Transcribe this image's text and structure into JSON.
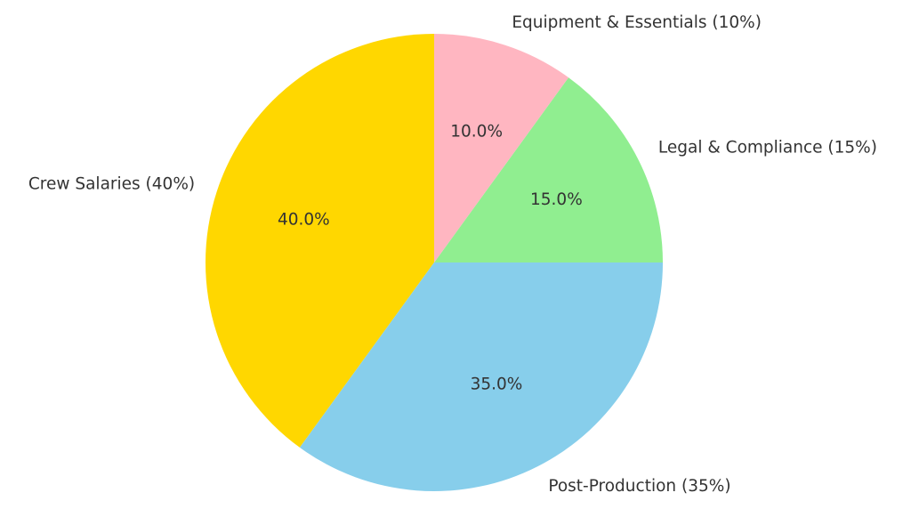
{
  "chart_data": {
    "type": "pie",
    "categories": [
      "Crew Salaries (40%)",
      "Post-Production (35%)",
      "Legal & Compliance (15%)",
      "Equipment & Essentials (10%)"
    ],
    "values": [
      40,
      35,
      15,
      10
    ],
    "value_labels": [
      "40.0%",
      "35.0%",
      "15.0%",
      "10.0%"
    ],
    "colors": [
      "#ffd700",
      "#87ceeb",
      "#90ee90",
      "#ffb6c1"
    ]
  }
}
